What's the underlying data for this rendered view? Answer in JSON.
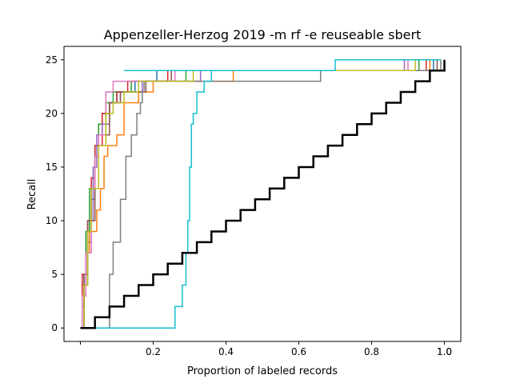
{
  "chart_data": {
    "type": "line",
    "title": "Appenzeller-Herzog 2019 -m rf -e reuseable sbert",
    "xlabel": "Proportion of labeled records",
    "ylabel": "Recall",
    "xlim": [
      -0.045,
      1.045
    ],
    "ylim": [
      -1.25,
      26.25
    ],
    "xticks": [
      0.0,
      0.2,
      0.4,
      0.6,
      0.8,
      1.0
    ],
    "xtick_labels": [
      "",
      "0.2",
      "0.4",
      "0.6",
      "0.8",
      "1.0"
    ],
    "xtick_labels_overlay": [
      {
        "x": 1.0,
        "label": "1.0"
      }
    ],
    "yticks": [
      0,
      5,
      10,
      15,
      20,
      25
    ],
    "ytick_labels": [
      "0",
      "5",
      "10",
      "15",
      "20",
      "25"
    ],
    "grid": false,
    "legend": "none",
    "series": [
      {
        "color": "#1f77b4",
        "width": 1.5,
        "points": [
          [
            0.0,
            0
          ],
          [
            0.005,
            2
          ],
          [
            0.01,
            5
          ],
          [
            0.02,
            8
          ],
          [
            0.03,
            12
          ],
          [
            0.04,
            16
          ],
          [
            0.05,
            19
          ],
          [
            0.06,
            20
          ],
          [
            0.08,
            21
          ],
          [
            0.1,
            22
          ],
          [
            0.15,
            23
          ],
          [
            0.21,
            24
          ],
          [
            0.97,
            25
          ],
          [
            0.99,
            25
          ]
        ]
      },
      {
        "color": "#ff7f0e",
        "width": 1.5,
        "points": [
          [
            0.0,
            0
          ],
          [
            0.01,
            3
          ],
          [
            0.015,
            7
          ],
          [
            0.025,
            9
          ],
          [
            0.045,
            11
          ],
          [
            0.055,
            13
          ],
          [
            0.065,
            16
          ],
          [
            0.075,
            17
          ],
          [
            0.1,
            18
          ],
          [
            0.12,
            21
          ],
          [
            0.16,
            22
          ],
          [
            0.2,
            23
          ],
          [
            0.42,
            24
          ],
          [
            0.96,
            25
          ],
          [
            0.99,
            25
          ]
        ]
      },
      {
        "color": "#2ca02c",
        "width": 1.5,
        "points": [
          [
            0.0,
            0
          ],
          [
            0.005,
            4
          ],
          [
            0.015,
            9
          ],
          [
            0.025,
            13
          ],
          [
            0.04,
            17
          ],
          [
            0.05,
            19
          ],
          [
            0.07,
            21
          ],
          [
            0.09,
            22
          ],
          [
            0.14,
            23
          ],
          [
            0.29,
            24
          ],
          [
            0.93,
            25
          ],
          [
            0.99,
            25
          ]
        ]
      },
      {
        "color": "#d62728",
        "width": 1.5,
        "points": [
          [
            0.0,
            0
          ],
          [
            0.005,
            5
          ],
          [
            0.02,
            10
          ],
          [
            0.03,
            14
          ],
          [
            0.04,
            17
          ],
          [
            0.06,
            20
          ],
          [
            0.08,
            21
          ],
          [
            0.1,
            22
          ],
          [
            0.13,
            23
          ],
          [
            0.24,
            24
          ],
          [
            0.95,
            25
          ],
          [
            0.99,
            25
          ]
        ]
      },
      {
        "color": "#9467bd",
        "width": 1.5,
        "points": [
          [
            0.0,
            0
          ],
          [
            0.01,
            4
          ],
          [
            0.02,
            10
          ],
          [
            0.035,
            15
          ],
          [
            0.045,
            18
          ],
          [
            0.06,
            19
          ],
          [
            0.08,
            21
          ],
          [
            0.11,
            22
          ],
          [
            0.17,
            23
          ],
          [
            0.33,
            24
          ],
          [
            0.89,
            25
          ],
          [
            0.99,
            25
          ]
        ]
      },
      {
        "color": "#8c564b",
        "width": 1.5,
        "points": [
          [
            0.0,
            0
          ],
          [
            0.01,
            5
          ],
          [
            0.02,
            10
          ],
          [
            0.04,
            16
          ],
          [
            0.05,
            18
          ],
          [
            0.08,
            21
          ],
          [
            0.11,
            22
          ],
          [
            0.18,
            23
          ],
          [
            0.25,
            24
          ],
          [
            0.98,
            25
          ],
          [
            0.99,
            25
          ]
        ]
      },
      {
        "color": "#e377c2",
        "width": 1.5,
        "points": [
          [
            0.0,
            0
          ],
          [
            0.005,
            3
          ],
          [
            0.015,
            7
          ],
          [
            0.03,
            13
          ],
          [
            0.04,
            16
          ],
          [
            0.05,
            18
          ],
          [
            0.07,
            22
          ],
          [
            0.09,
            23
          ],
          [
            0.26,
            24
          ],
          [
            0.9,
            25
          ],
          [
            0.99,
            25
          ]
        ]
      },
      {
        "color": "#7f7f7f",
        "width": 1.5,
        "points": [
          [
            0.0,
            0
          ],
          [
            0.07,
            0
          ],
          [
            0.08,
            5
          ],
          [
            0.09,
            8
          ],
          [
            0.11,
            12
          ],
          [
            0.125,
            16
          ],
          [
            0.14,
            18
          ],
          [
            0.155,
            20
          ],
          [
            0.165,
            21
          ],
          [
            0.17,
            22
          ],
          [
            0.175,
            23
          ],
          [
            0.66,
            24
          ],
          [
            0.99,
            25
          ]
        ]
      },
      {
        "color": "#bcbd22",
        "width": 1.5,
        "points": [
          [
            0.0,
            0
          ],
          [
            0.01,
            4
          ],
          [
            0.02,
            9
          ],
          [
            0.03,
            13
          ],
          [
            0.05,
            17
          ],
          [
            0.07,
            20
          ],
          [
            0.09,
            21
          ],
          [
            0.12,
            22
          ],
          [
            0.16,
            23
          ],
          [
            0.31,
            24
          ],
          [
            0.92,
            25
          ],
          [
            0.99,
            25
          ]
        ]
      },
      {
        "color": "#17becf",
        "width": 1.5,
        "points": [
          [
            0.0,
            0
          ],
          [
            0.25,
            0
          ],
          [
            0.26,
            2
          ],
          [
            0.28,
            4
          ],
          [
            0.29,
            7
          ],
          [
            0.295,
            10
          ],
          [
            0.3,
            15
          ],
          [
            0.305,
            19
          ],
          [
            0.31,
            20
          ],
          [
            0.32,
            22
          ],
          [
            0.34,
            23
          ],
          [
            0.36,
            24
          ],
          [
            0.12,
            24
          ],
          [
            0.7,
            25
          ],
          [
            0.99,
            25
          ]
        ]
      },
      {
        "color": "#000000",
        "width": 2.5,
        "points": [
          [
            0.0,
            0
          ],
          [
            0.04,
            1
          ],
          [
            0.08,
            2
          ],
          [
            0.12,
            3
          ],
          [
            0.16,
            4
          ],
          [
            0.2,
            5
          ],
          [
            0.24,
            6
          ],
          [
            0.28,
            7
          ],
          [
            0.32,
            8
          ],
          [
            0.36,
            9
          ],
          [
            0.4,
            10
          ],
          [
            0.44,
            11
          ],
          [
            0.48,
            12
          ],
          [
            0.52,
            13
          ],
          [
            0.56,
            14
          ],
          [
            0.6,
            15
          ],
          [
            0.64,
            16
          ],
          [
            0.68,
            17
          ],
          [
            0.72,
            18
          ],
          [
            0.76,
            19
          ],
          [
            0.8,
            20
          ],
          [
            0.84,
            21
          ],
          [
            0.88,
            22
          ],
          [
            0.92,
            23
          ],
          [
            0.96,
            24
          ],
          [
            1.0,
            25
          ]
        ]
      }
    ]
  }
}
